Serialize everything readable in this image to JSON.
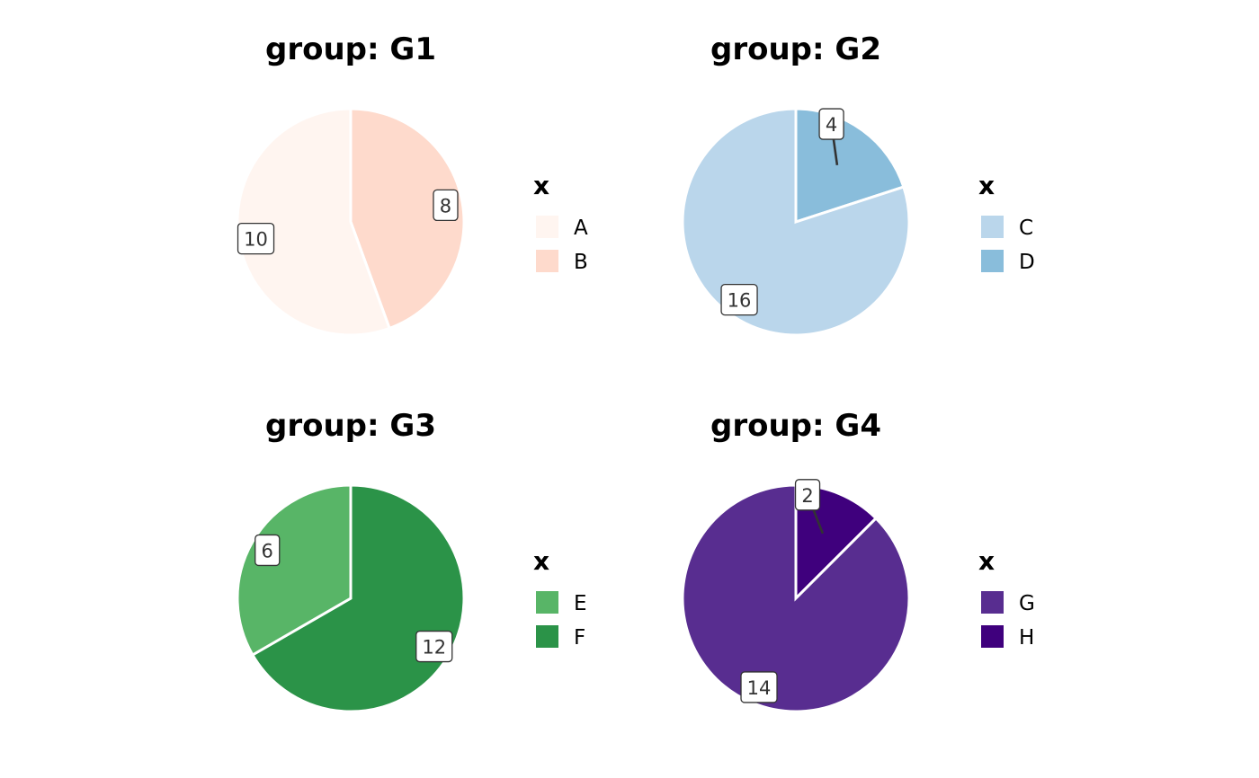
{
  "chart_data": [
    {
      "type": "pie",
      "title": "group: G1",
      "legend_title": "x",
      "legend_position": "right",
      "slices": [
        {
          "label": "A",
          "value": 10,
          "color": "#FFF5F0"
        },
        {
          "label": "B",
          "value": 8,
          "color": "#FEDACC"
        }
      ]
    },
    {
      "type": "pie",
      "title": "group: G2",
      "legend_title": "x",
      "legend_position": "right",
      "slices": [
        {
          "label": "C",
          "value": 16,
          "color": "#BAD6EB"
        },
        {
          "label": "D",
          "value": 4,
          "color": "#89BDDB"
        }
      ]
    },
    {
      "type": "pie",
      "title": "group: G3",
      "legend_title": "x",
      "legend_position": "right",
      "slices": [
        {
          "label": "E",
          "value": 6,
          "color": "#58B567"
        },
        {
          "label": "F",
          "value": 12,
          "color": "#2B9348"
        }
      ]
    },
    {
      "type": "pie",
      "title": "group: G4",
      "legend_title": "x",
      "legend_position": "right",
      "slices": [
        {
          "label": "G",
          "value": 14,
          "color": "#582D90"
        },
        {
          "label": "H",
          "value": 2,
          "color": "#3F007D"
        }
      ]
    }
  ]
}
